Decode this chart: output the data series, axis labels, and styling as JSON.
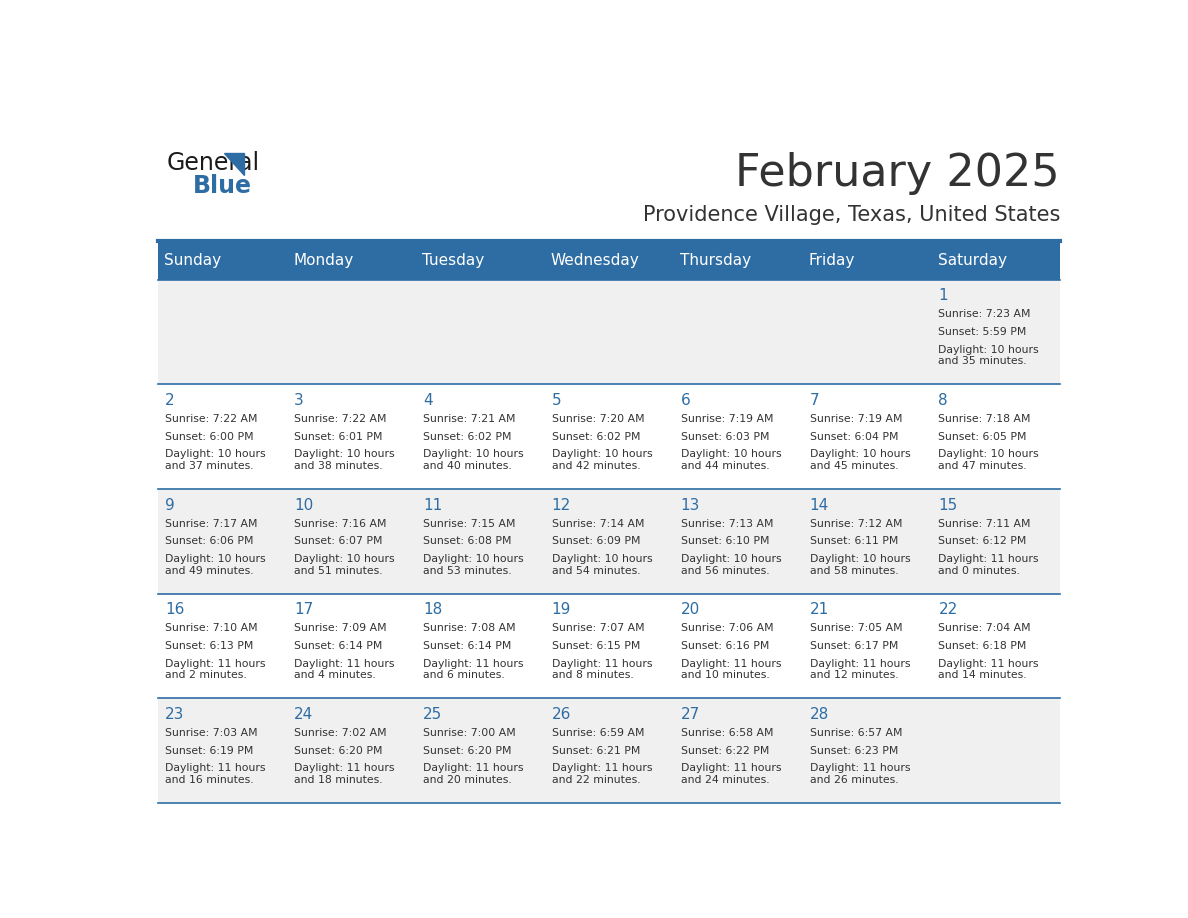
{
  "title": "February 2025",
  "subtitle": "Providence Village, Texas, United States",
  "header_bg": "#2E6DA4",
  "header_text_color": "#FFFFFF",
  "cell_bg_light": "#F0F0F0",
  "cell_bg_white": "#FFFFFF",
  "day_headers": [
    "Sunday",
    "Monday",
    "Tuesday",
    "Wednesday",
    "Thursday",
    "Friday",
    "Saturday"
  ],
  "header_color": "#2E6DA4",
  "text_color": "#333333",
  "line_color": "#2E6DA4",
  "days": [
    {
      "day": 1,
      "col": 6,
      "row": 0,
      "sunrise": "7:23 AM",
      "sunset": "5:59 PM",
      "daylight": "10 hours\nand 35 minutes."
    },
    {
      "day": 2,
      "col": 0,
      "row": 1,
      "sunrise": "7:22 AM",
      "sunset": "6:00 PM",
      "daylight": "10 hours\nand 37 minutes."
    },
    {
      "day": 3,
      "col": 1,
      "row": 1,
      "sunrise": "7:22 AM",
      "sunset": "6:01 PM",
      "daylight": "10 hours\nand 38 minutes."
    },
    {
      "day": 4,
      "col": 2,
      "row": 1,
      "sunrise": "7:21 AM",
      "sunset": "6:02 PM",
      "daylight": "10 hours\nand 40 minutes."
    },
    {
      "day": 5,
      "col": 3,
      "row": 1,
      "sunrise": "7:20 AM",
      "sunset": "6:02 PM",
      "daylight": "10 hours\nand 42 minutes."
    },
    {
      "day": 6,
      "col": 4,
      "row": 1,
      "sunrise": "7:19 AM",
      "sunset": "6:03 PM",
      "daylight": "10 hours\nand 44 minutes."
    },
    {
      "day": 7,
      "col": 5,
      "row": 1,
      "sunrise": "7:19 AM",
      "sunset": "6:04 PM",
      "daylight": "10 hours\nand 45 minutes."
    },
    {
      "day": 8,
      "col": 6,
      "row": 1,
      "sunrise": "7:18 AM",
      "sunset": "6:05 PM",
      "daylight": "10 hours\nand 47 minutes."
    },
    {
      "day": 9,
      "col": 0,
      "row": 2,
      "sunrise": "7:17 AM",
      "sunset": "6:06 PM",
      "daylight": "10 hours\nand 49 minutes."
    },
    {
      "day": 10,
      "col": 1,
      "row": 2,
      "sunrise": "7:16 AM",
      "sunset": "6:07 PM",
      "daylight": "10 hours\nand 51 minutes."
    },
    {
      "day": 11,
      "col": 2,
      "row": 2,
      "sunrise": "7:15 AM",
      "sunset": "6:08 PM",
      "daylight": "10 hours\nand 53 minutes."
    },
    {
      "day": 12,
      "col": 3,
      "row": 2,
      "sunrise": "7:14 AM",
      "sunset": "6:09 PM",
      "daylight": "10 hours\nand 54 minutes."
    },
    {
      "day": 13,
      "col": 4,
      "row": 2,
      "sunrise": "7:13 AM",
      "sunset": "6:10 PM",
      "daylight": "10 hours\nand 56 minutes."
    },
    {
      "day": 14,
      "col": 5,
      "row": 2,
      "sunrise": "7:12 AM",
      "sunset": "6:11 PM",
      "daylight": "10 hours\nand 58 minutes."
    },
    {
      "day": 15,
      "col": 6,
      "row": 2,
      "sunrise": "7:11 AM",
      "sunset": "6:12 PM",
      "daylight": "11 hours\nand 0 minutes."
    },
    {
      "day": 16,
      "col": 0,
      "row": 3,
      "sunrise": "7:10 AM",
      "sunset": "6:13 PM",
      "daylight": "11 hours\nand 2 minutes."
    },
    {
      "day": 17,
      "col": 1,
      "row": 3,
      "sunrise": "7:09 AM",
      "sunset": "6:14 PM",
      "daylight": "11 hours\nand 4 minutes."
    },
    {
      "day": 18,
      "col": 2,
      "row": 3,
      "sunrise": "7:08 AM",
      "sunset": "6:14 PM",
      "daylight": "11 hours\nand 6 minutes."
    },
    {
      "day": 19,
      "col": 3,
      "row": 3,
      "sunrise": "7:07 AM",
      "sunset": "6:15 PM",
      "daylight": "11 hours\nand 8 minutes."
    },
    {
      "day": 20,
      "col": 4,
      "row": 3,
      "sunrise": "7:06 AM",
      "sunset": "6:16 PM",
      "daylight": "11 hours\nand 10 minutes."
    },
    {
      "day": 21,
      "col": 5,
      "row": 3,
      "sunrise": "7:05 AM",
      "sunset": "6:17 PM",
      "daylight": "11 hours\nand 12 minutes."
    },
    {
      "day": 22,
      "col": 6,
      "row": 3,
      "sunrise": "7:04 AM",
      "sunset": "6:18 PM",
      "daylight": "11 hours\nand 14 minutes."
    },
    {
      "day": 23,
      "col": 0,
      "row": 4,
      "sunrise": "7:03 AM",
      "sunset": "6:19 PM",
      "daylight": "11 hours\nand 16 minutes."
    },
    {
      "day": 24,
      "col": 1,
      "row": 4,
      "sunrise": "7:02 AM",
      "sunset": "6:20 PM",
      "daylight": "11 hours\nand 18 minutes."
    },
    {
      "day": 25,
      "col": 2,
      "row": 4,
      "sunrise": "7:00 AM",
      "sunset": "6:20 PM",
      "daylight": "11 hours\nand 20 minutes."
    },
    {
      "day": 26,
      "col": 3,
      "row": 4,
      "sunrise": "6:59 AM",
      "sunset": "6:21 PM",
      "daylight": "11 hours\nand 22 minutes."
    },
    {
      "day": 27,
      "col": 4,
      "row": 4,
      "sunrise": "6:58 AM",
      "sunset": "6:22 PM",
      "daylight": "11 hours\nand 24 minutes."
    },
    {
      "day": 28,
      "col": 5,
      "row": 4,
      "sunrise": "6:57 AM",
      "sunset": "6:23 PM",
      "daylight": "11 hours\nand 26 minutes."
    }
  ],
  "num_rows": 5,
  "num_cols": 7,
  "logo_text_general": "General",
  "logo_text_blue": "Blue",
  "logo_color_general": "#1a1a1a",
  "logo_color_blue": "#2E6DA4",
  "logo_triangle_color": "#2E6DA4"
}
